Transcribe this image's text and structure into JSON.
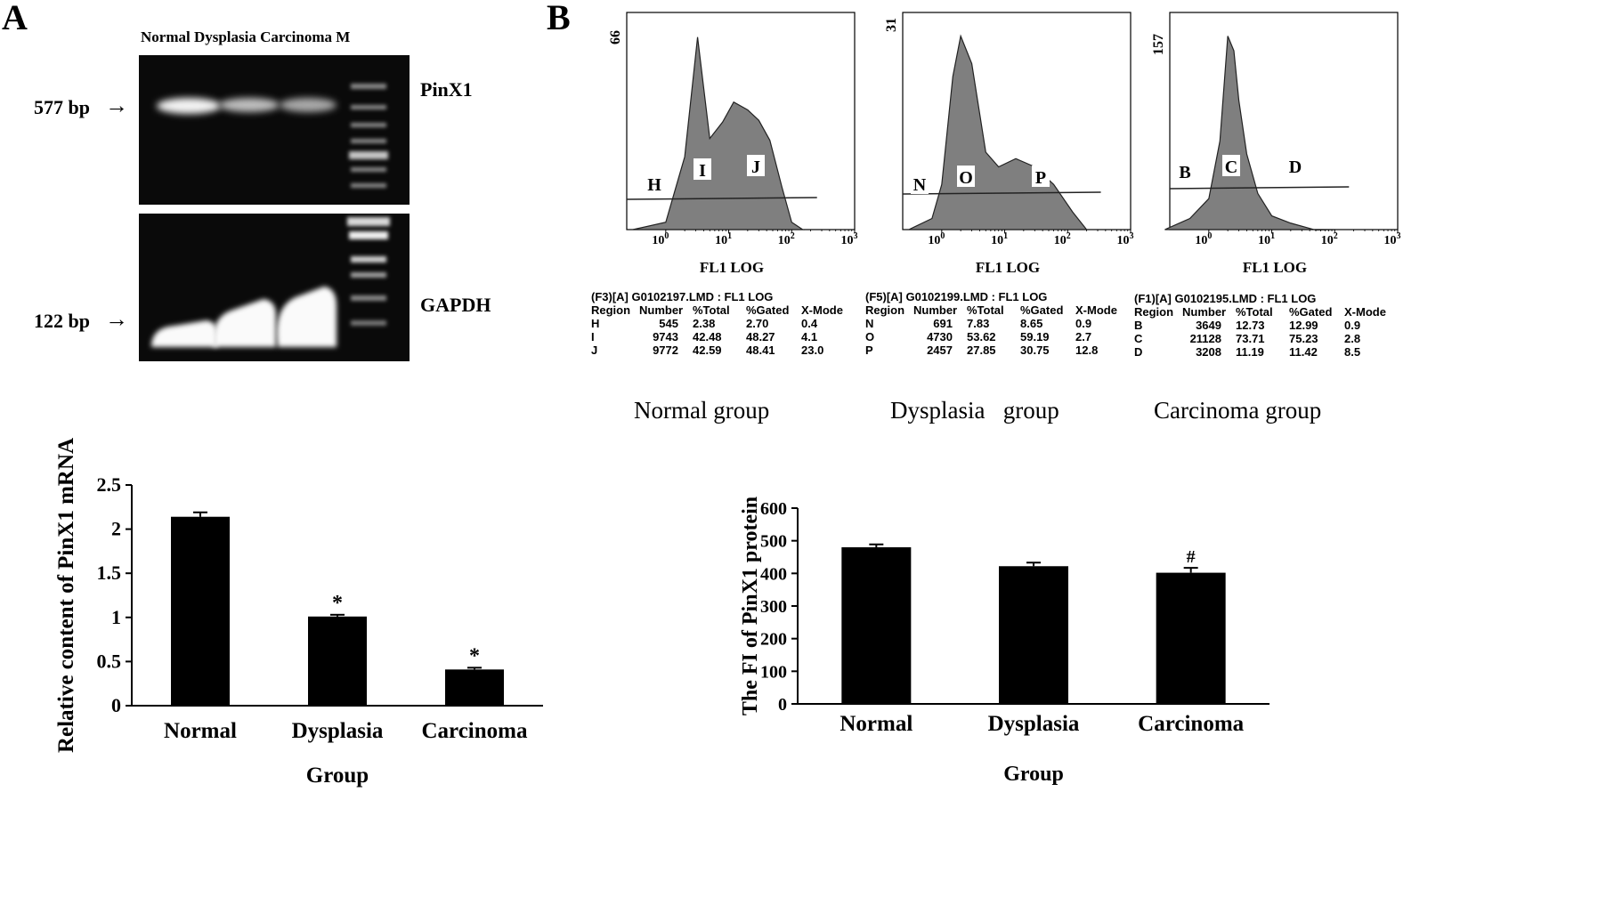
{
  "panel_a": {
    "letter": "A",
    "gel": {
      "lane_header": "Normal Dysplasia Carcinoma M",
      "top_marker": "577 bp",
      "top_gene": "PinX1",
      "bottom_marker": "122 bp",
      "bottom_gene": "GAPDH"
    }
  },
  "panel_b": {
    "letter": "B",
    "histograms": [
      {
        "id": "normal",
        "caption": "Normal group",
        "y_max": "66",
        "xlabel": "FL1 LOG",
        "regions": [
          "H",
          "I",
          "J"
        ],
        "stats_title": "(F3)[A] G0102197.LMD : FL1 LOG",
        "stats_header": [
          "Region",
          "Number",
          "%Total",
          "%Gated",
          "X-Mode"
        ],
        "stats_rows": [
          [
            "H",
            "545",
            "2.38",
            "2.70",
            "0.4"
          ],
          [
            "I",
            "9743",
            "42.48",
            "48.27",
            "4.1"
          ],
          [
            "J",
            "9772",
            "42.59",
            "48.41",
            "23.0"
          ]
        ]
      },
      {
        "id": "dysplasia",
        "caption": "Dysplasia   group",
        "y_max": "31",
        "xlabel": "FL1 LOG",
        "regions": [
          "N",
          "O",
          "P"
        ],
        "stats_title": "(F5)[A] G0102199.LMD : FL1 LOG",
        "stats_header": [
          "Region",
          "Number",
          "%Total",
          "%Gated",
          "X-Mode"
        ],
        "stats_rows": [
          [
            "N",
            "691",
            "7.83",
            "8.65",
            "0.9"
          ],
          [
            "O",
            "4730",
            "53.62",
            "59.19",
            "2.7"
          ],
          [
            "P",
            "2457",
            "27.85",
            "30.75",
            "12.8"
          ]
        ]
      },
      {
        "id": "carcinoma",
        "caption": "Carcinoma group",
        "y_max": "157",
        "xlabel": "FL1 LOG",
        "regions": [
          "B",
          "C",
          "D"
        ],
        "stats_title": "(F1)[A] G0102195.LMD : FL1 LOG",
        "stats_header": [
          "Region",
          "Number",
          "%Total",
          "%Gated",
          "X-Mode"
        ],
        "stats_rows": [
          [
            "B",
            "3649",
            "12.73",
            "12.99",
            "0.9"
          ],
          [
            "C",
            "21128",
            "73.71",
            "75.23",
            "2.8"
          ],
          [
            "D",
            "3208",
            "11.19",
            "11.42",
            "8.5"
          ]
        ]
      }
    ]
  },
  "chart_data": [
    {
      "type": "bar",
      "ylabel": "Relative content of PinX1 mRNA",
      "xlabel": "Group",
      "categories": [
        "Normal",
        "Dysplasia",
        "Carcinoma"
      ],
      "values": [
        2.14,
        1.01,
        0.41
      ],
      "errors": [
        0.05,
        0.02,
        0.02
      ],
      "annotations": [
        "",
        "*",
        "*"
      ],
      "ylim": [
        0,
        2.5
      ],
      "yticks": [
        "0",
        "0.5",
        "1",
        "1.5",
        "2",
        "2.5"
      ],
      "bar_color": "#000000",
      "grid": false
    },
    {
      "type": "bar",
      "ylabel": "The FI of PinX1 protein",
      "xlabel": "Group",
      "categories": [
        "Normal",
        "Dysplasia",
        "Carcinoma"
      ],
      "values": [
        480,
        422,
        402
      ],
      "errors": [
        9,
        11,
        15
      ],
      "annotations": [
        "",
        "",
        "#"
      ],
      "ylim": [
        0,
        600
      ],
      "yticks": [
        "0",
        "100",
        "200",
        "300",
        "400",
        "500",
        "600"
      ],
      "bar_color": "#000000",
      "grid": false
    },
    {
      "type": "area",
      "title": "",
      "xlabel": "FL1 LOG",
      "x_scale": "log",
      "x_ticks": [
        "10^0",
        "10^1",
        "10^2",
        "10^3"
      ],
      "series": [
        {
          "name": "Normal group",
          "x": [
            0.3,
            1,
            2,
            3.2,
            5,
            8,
            12,
            20,
            30,
            45,
            70,
            100,
            150
          ],
          "y": [
            0,
            3,
            24,
            64,
            30,
            36,
            42,
            40,
            36,
            30,
            14,
            3,
            0
          ]
        },
        {
          "name": "Dysplasia group",
          "x": [
            0.3,
            0.7,
            1,
            1.5,
            2,
            3,
            5,
            8,
            15,
            30,
            60,
            120,
            200
          ],
          "y": [
            0,
            2,
            7,
            24,
            30,
            26,
            12,
            10,
            11,
            10,
            7,
            3,
            0
          ]
        },
        {
          "name": "Carcinoma group",
          "x": [
            0.2,
            0.5,
            1,
            1.5,
            2,
            2.5,
            3,
            4,
            6,
            10,
            20,
            50,
            100
          ],
          "y": [
            0,
            10,
            24,
            70,
            150,
            140,
            100,
            60,
            28,
            12,
            5,
            1,
            0
          ]
        }
      ]
    }
  ]
}
